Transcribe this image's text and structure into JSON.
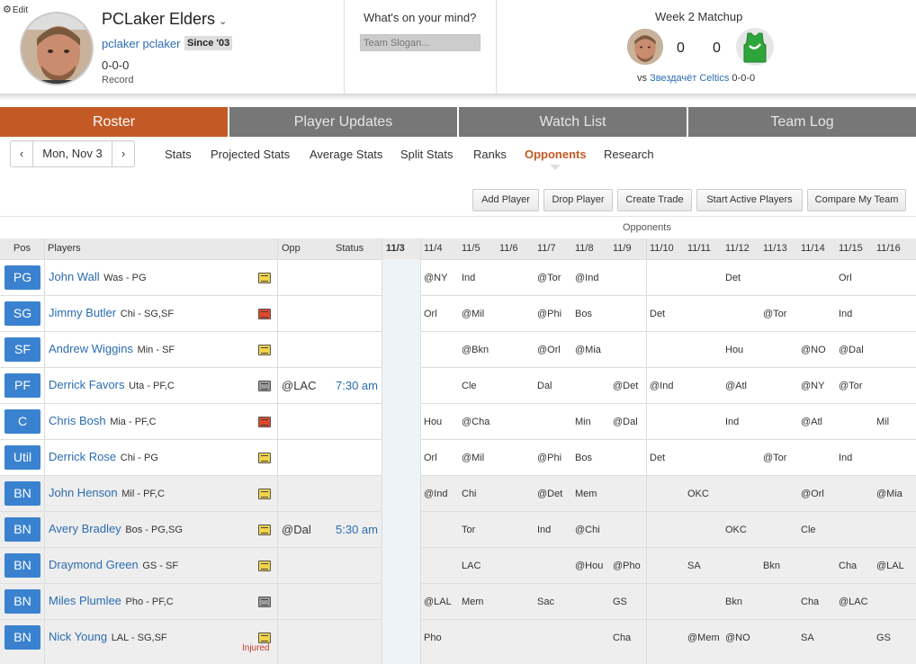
{
  "header": {
    "edit_label": "Edit",
    "team_name": "PCLaker Elders",
    "owner": "pclaker pclaker",
    "since": "Since '03",
    "record_value": "0-0-0",
    "record_label": "Record",
    "mind_prompt": "What's on your mind?",
    "slogan_placeholder": "Team Slogan..."
  },
  "matchup": {
    "title": "Week 2 Matchup",
    "my_score": "0",
    "opp_score": "0",
    "vs_prefix": "vs",
    "opponent": "Звездачёт Celtics",
    "opponent_record": "0-0-0",
    "jersey_color": "#2ea53b"
  },
  "tabs": [
    {
      "label": "Roster"
    },
    {
      "label": "Player Updates"
    },
    {
      "label": "Watch List"
    },
    {
      "label": "Team Log"
    }
  ],
  "date_nav": {
    "prev": "‹",
    "date": "Mon, Nov 3",
    "next": "›"
  },
  "subnav": [
    "Stats",
    "Projected Stats",
    "Average Stats",
    "Split Stats",
    "Ranks",
    "Opponents",
    "Research"
  ],
  "subnav_active": "Opponents",
  "actions": [
    "Add Player",
    "Drop Player",
    "Create Trade",
    "Start Active Players",
    "Compare My Team"
  ],
  "table": {
    "group_label": "Opponents",
    "headers": {
      "pos": "Pos",
      "players": "Players",
      "opp": "Opp",
      "status": "Status",
      "days": [
        "11/3",
        "11/4",
        "11/5",
        "11/6",
        "11/7",
        "11/8",
        "11/9",
        "11/10",
        "11/11",
        "11/12",
        "11/13",
        "11/14",
        "11/15",
        "11/16"
      ]
    },
    "rows": [
      {
        "pos": "PG",
        "name": "John Wall",
        "meta": "Was - PG",
        "note": "yellow",
        "opp": "",
        "status": "",
        "injured": "",
        "games": [
          "",
          "@NY",
          "Ind",
          "",
          "@Tor",
          "@Ind",
          "",
          "",
          "",
          "Det",
          "",
          "",
          "Orl",
          ""
        ]
      },
      {
        "pos": "SG",
        "name": "Jimmy Butler",
        "meta": "Chi - SG,SF",
        "note": "red",
        "opp": "",
        "status": "",
        "injured": "",
        "games": [
          "",
          "Orl",
          "@Mil",
          "",
          "@Phi",
          "Bos",
          "",
          "Det",
          "",
          "",
          "@Tor",
          "",
          "Ind",
          ""
        ]
      },
      {
        "pos": "SF",
        "name": "Andrew Wiggins",
        "meta": "Min - SF",
        "note": "yellow",
        "opp": "",
        "status": "",
        "injured": "",
        "games": [
          "",
          "",
          "@Bkn",
          "",
          "@Orl",
          "@Mia",
          "",
          "",
          "",
          "Hou",
          "",
          "@NO",
          "@Dal",
          ""
        ]
      },
      {
        "pos": "PF",
        "name": "Derrick Favors",
        "meta": "Uta - PF,C",
        "note": "gray",
        "opp": "@LAC",
        "status": "7:30 am",
        "injured": "",
        "games": [
          "@LAC",
          "",
          "Cle",
          "",
          "Dal",
          "",
          "@Det",
          "@Ind",
          "",
          "@Atl",
          "",
          "@NY",
          "@Tor",
          ""
        ]
      },
      {
        "pos": "C",
        "name": "Chris Bosh",
        "meta": "Mia - PF,C",
        "note": "red",
        "opp": "",
        "status": "",
        "injured": "",
        "games": [
          "",
          "Hou",
          "@Cha",
          "",
          "",
          "Min",
          "@Dal",
          "",
          "",
          "Ind",
          "",
          "@Atl",
          "",
          "Mil"
        ]
      },
      {
        "pos": "Util",
        "name": "Derrick Rose",
        "meta": "Chi - PG",
        "note": "yellow",
        "opp": "",
        "status": "",
        "injured": "",
        "games": [
          "",
          "Orl",
          "@Mil",
          "",
          "@Phi",
          "Bos",
          "",
          "Det",
          "",
          "",
          "@Tor",
          "",
          "Ind",
          ""
        ]
      },
      {
        "pos": "BN",
        "name": "John Henson",
        "meta": "Mil - PF,C",
        "note": "yellow",
        "opp": "",
        "status": "",
        "injured": "",
        "games": [
          "",
          "@Ind",
          "Chi",
          "",
          "@Det",
          "Mem",
          "",
          "",
          "OKC",
          "",
          "",
          "@Orl",
          "",
          "@Mia"
        ]
      },
      {
        "pos": "BN",
        "name": "Avery Bradley",
        "meta": "Bos - PG,SG",
        "note": "yellow",
        "opp": "@Dal",
        "status": "5:30 am",
        "injured": "",
        "games": [
          "@Dal",
          "",
          "Tor",
          "",
          "Ind",
          "@Chi",
          "",
          "",
          "",
          "OKC",
          "",
          "Cle",
          "",
          ""
        ]
      },
      {
        "pos": "BN",
        "name": "Draymond Green",
        "meta": "GS - SF",
        "note": "yellow",
        "opp": "",
        "status": "",
        "injured": "",
        "games": [
          "",
          "",
          "LAC",
          "",
          "",
          "@Hou",
          "@Pho",
          "",
          "SA",
          "",
          "Bkn",
          "",
          "Cha",
          "@LAL"
        ]
      },
      {
        "pos": "BN",
        "name": "Miles Plumlee",
        "meta": "Pho - PF,C",
        "note": "gray",
        "opp": "",
        "status": "",
        "injured": "",
        "games": [
          "",
          "@LAL",
          "Mem",
          "",
          "Sac",
          "",
          "GS",
          "",
          "",
          "Bkn",
          "",
          "Cha",
          "@LAC",
          ""
        ]
      },
      {
        "pos": "BN",
        "name": "Nick Young",
        "meta": "LAL - SG,SF",
        "note": "yellow",
        "opp": "",
        "status": "",
        "injured": "Injured",
        "games": [
          "",
          "Pho",
          "",
          "",
          "",
          "",
          "Cha",
          "",
          "@Mem",
          "@NO",
          "",
          "SA",
          "",
          "GS"
        ]
      }
    ]
  }
}
